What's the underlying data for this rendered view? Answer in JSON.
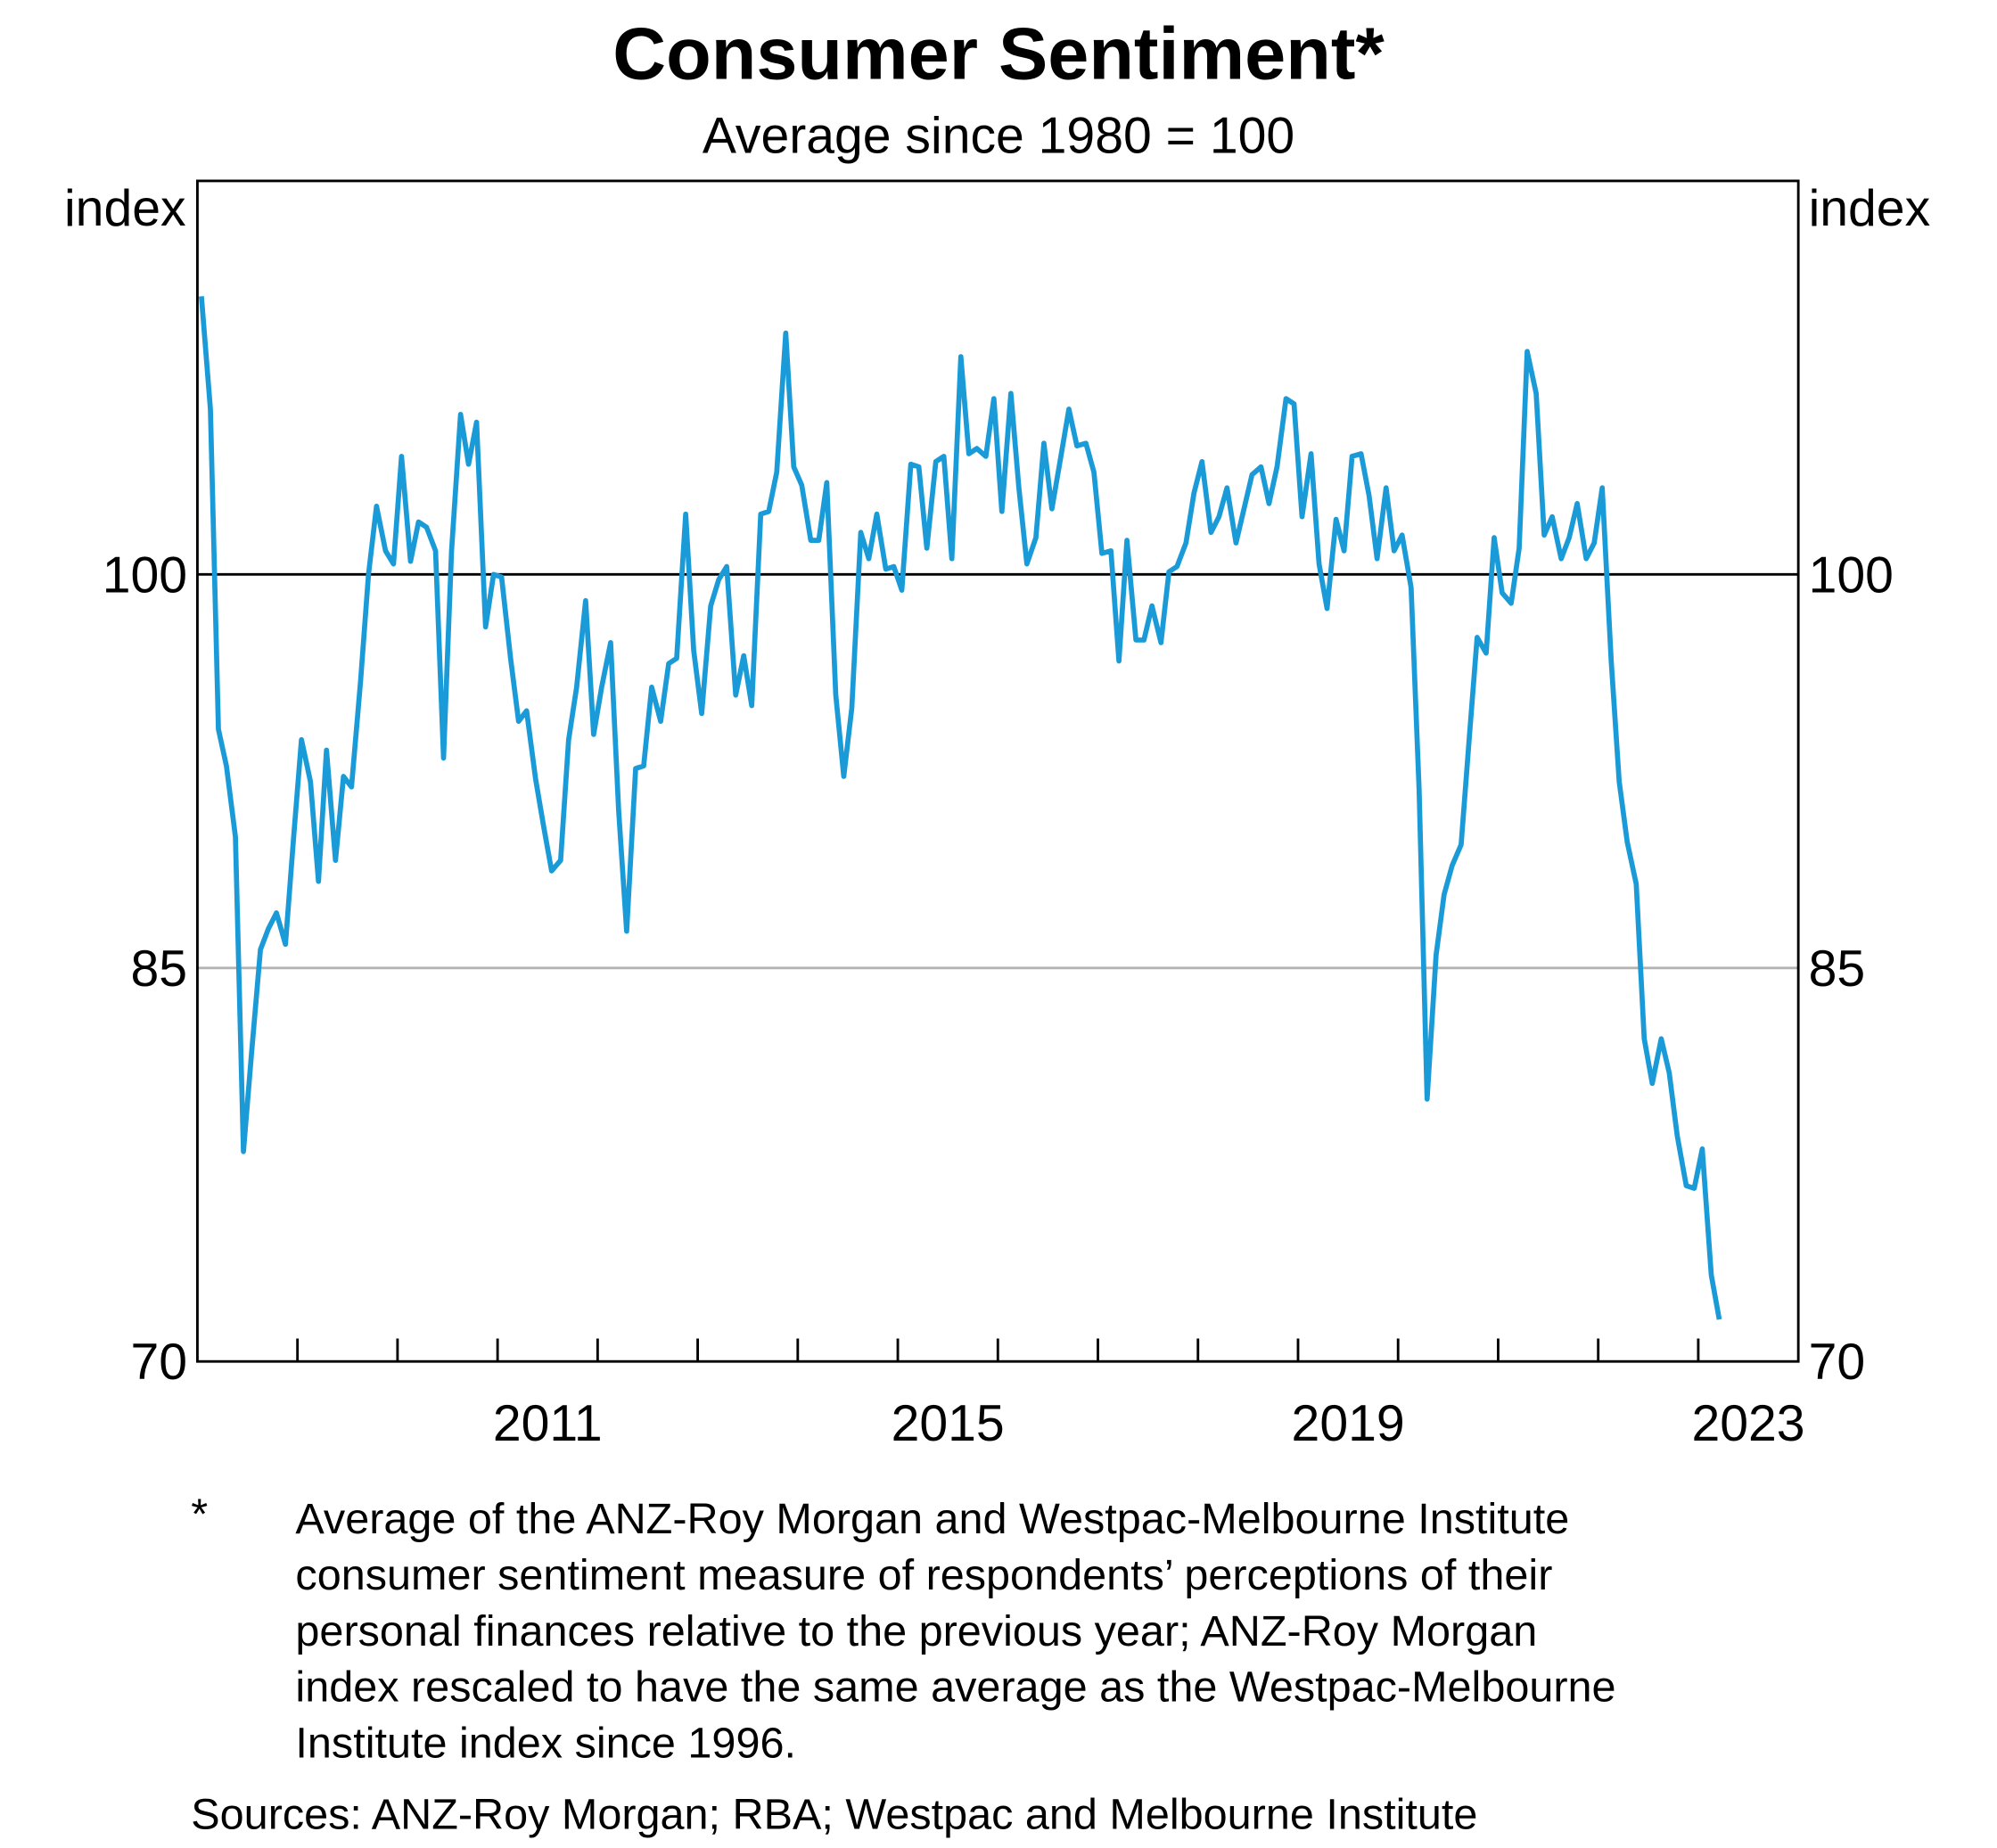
{
  "chart_data": {
    "type": "line",
    "title": "Consumer Sentiment*",
    "subtitle": "Average since 1980 = 100",
    "y_label": "index",
    "y2_label": "index",
    "ylim": [
      70,
      115
    ],
    "yticks": [
      70,
      85,
      100
    ],
    "xlim": [
      2008,
      2024
    ],
    "xticks": [
      {
        "value": 2011.5,
        "label": "2011"
      },
      {
        "value": 2015.5,
        "label": "2015"
      },
      {
        "value": 2019.5,
        "label": "2019"
      },
      {
        "value": 2023.5,
        "label": "2023"
      }
    ],
    "x_tick_marks": [
      2009,
      2010,
      2011,
      2012,
      2013,
      2014,
      2015,
      2016,
      2017,
      2018,
      2019,
      2020,
      2021,
      2022,
      2023
    ],
    "grid": true,
    "grid_color": "#b3b3b3",
    "reference_line": 100,
    "reference_color": "#000000",
    "x": [
      2008.04,
      2008.13,
      2008.21,
      2008.29,
      2008.38,
      2008.46,
      2008.54,
      2008.63,
      2008.71,
      2008.79,
      2008.88,
      2008.96,
      2009.04,
      2009.13,
      2009.21,
      2009.29,
      2009.38,
      2009.46,
      2009.54,
      2009.63,
      2009.71,
      2009.79,
      2009.88,
      2009.96,
      2010.04,
      2010.13,
      2010.21,
      2010.29,
      2010.38,
      2010.46,
      2010.54,
      2010.63,
      2010.71,
      2010.79,
      2010.88,
      2010.96,
      2011.04,
      2011.13,
      2011.21,
      2011.29,
      2011.38,
      2011.46,
      2011.54,
      2011.63,
      2011.71,
      2011.79,
      2011.88,
      2011.96,
      2012.04,
      2012.13,
      2012.21,
      2012.29,
      2012.38,
      2012.46,
      2012.54,
      2012.63,
      2012.71,
      2012.79,
      2012.88,
      2012.96,
      2013.04,
      2013.13,
      2013.21,
      2013.29,
      2013.38,
      2013.46,
      2013.54,
      2013.63,
      2013.71,
      2013.79,
      2013.88,
      2013.96,
      2014.04,
      2014.13,
      2014.21,
      2014.29,
      2014.38,
      2014.46,
      2014.54,
      2014.63,
      2014.71,
      2014.79,
      2014.88,
      2014.96,
      2015.04,
      2015.13,
      2015.21,
      2015.29,
      2015.38,
      2015.46,
      2015.54,
      2015.63,
      2015.71,
      2015.79,
      2015.88,
      2015.96,
      2016.04,
      2016.13,
      2016.21,
      2016.29,
      2016.38,
      2016.46,
      2016.54,
      2016.63,
      2016.71,
      2016.79,
      2016.88,
      2016.96,
      2017.04,
      2017.13,
      2017.21,
      2017.29,
      2017.38,
      2017.46,
      2017.54,
      2017.63,
      2017.71,
      2017.79,
      2017.88,
      2017.96,
      2018.04,
      2018.13,
      2018.21,
      2018.29,
      2018.38,
      2018.46,
      2018.54,
      2018.63,
      2018.71,
      2018.79,
      2018.88,
      2018.96,
      2019.04,
      2019.13,
      2019.21,
      2019.29,
      2019.38,
      2019.46,
      2019.54,
      2019.63,
      2019.71,
      2019.79,
      2019.88,
      2019.96,
      2020.04,
      2020.13,
      2020.21,
      2020.29,
      2020.38,
      2020.46,
      2020.54,
      2020.63,
      2020.71,
      2020.79,
      2020.88,
      2020.96,
      2021.04,
      2021.13,
      2021.21,
      2021.29,
      2021.38,
      2021.46,
      2021.54,
      2021.63,
      2021.71,
      2021.79,
      2021.88,
      2021.96,
      2022.04,
      2022.13,
      2022.21,
      2022.29,
      2022.38,
      2022.46,
      2022.54,
      2022.63,
      2022.71,
      2022.79,
      2022.88,
      2022.96,
      2023.04,
      2023.13,
      2023.21
    ],
    "series": [
      {
        "color": "#1a9bd7",
        "values": [
          110.6,
          106.3,
          94.1,
          92.7,
          90.0,
          78.0,
          81.7,
          85.7,
          86.5,
          87.1,
          85.9,
          89.9,
          93.7,
          92.1,
          88.3,
          93.3,
          89.1,
          92.3,
          91.9,
          95.9,
          100.0,
          102.6,
          100.9,
          100.4,
          104.5,
          100.5,
          102.0,
          101.8,
          100.9,
          93.0,
          100.9,
          106.1,
          104.2,
          105.8,
          98.0,
          100.0,
          99.9,
          96.8,
          94.4,
          94.8,
          92.2,
          90.4,
          88.7,
          89.1,
          93.7,
          95.7,
          99.0,
          93.9,
          95.7,
          97.4,
          91.0,
          86.4,
          92.6,
          92.7,
          95.7,
          94.4,
          96.6,
          96.8,
          102.3,
          97.1,
          94.7,
          98.8,
          99.8,
          100.3,
          95.4,
          96.9,
          95.0,
          102.3,
          102.4,
          103.9,
          109.2,
          104.1,
          103.4,
          101.3,
          101.3,
          103.5,
          95.4,
          92.3,
          94.9,
          101.6,
          100.6,
          102.3,
          100.2,
          100.3,
          99.4,
          104.2,
          104.1,
          101.0,
          104.3,
          104.5,
          100.6,
          108.3,
          104.6,
          104.8,
          104.5,
          106.7,
          102.4,
          106.9,
          103.3,
          100.4,
          101.4,
          105.0,
          102.5,
          104.5,
          106.3,
          104.9,
          105.0,
          103.9,
          100.8,
          100.9,
          96.7,
          101.3,
          97.5,
          97.5,
          98.8,
          97.4,
          100.1,
          100.3,
          101.2,
          103.1,
          104.3,
          101.6,
          102.2,
          103.3,
          101.2,
          102.5,
          103.8,
          104.1,
          102.7,
          104.1,
          106.7,
          106.5,
          102.2,
          104.6,
          100.4,
          98.7,
          102.1,
          100.9,
          104.5,
          104.6,
          103.0,
          100.6,
          103.3,
          100.9,
          101.5,
          99.5,
          91.8,
          80.0,
          85.5,
          87.8,
          88.9,
          89.7,
          93.7,
          97.6,
          97.0,
          101.4,
          99.3,
          98.9,
          101.0,
          108.5,
          106.9,
          101.5,
          102.2,
          100.6,
          101.4,
          102.7,
          100.6,
          101.2,
          103.3,
          96.7,
          92.1,
          89.8,
          88.2,
          82.3,
          80.6,
          82.3,
          81.0,
          78.6,
          76.7,
          76.6,
          78.1,
          73.3,
          71.6
        ]
      }
    ],
    "footnote_marker": "*",
    "footnote": [
      "Average of the ANZ-Roy Morgan and Westpac-Melbourne Institute",
      "consumer sentiment measure of respondents’ perceptions of their",
      "personal finances relative to the previous year; ANZ-Roy Morgan",
      "index rescaled to have the same average as the Westpac-Melbourne",
      "Institute index since 1996."
    ],
    "sources": "Sources: ANZ-Roy Morgan; RBA; Westpac and Melbourne Institute"
  }
}
